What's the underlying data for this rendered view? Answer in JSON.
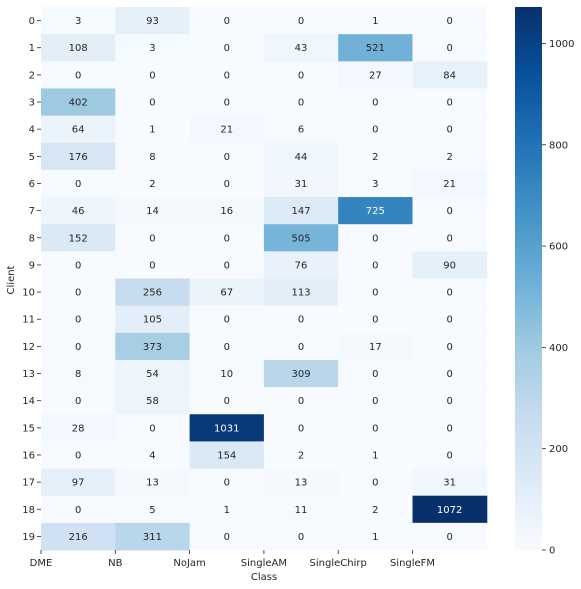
{
  "chart_data": {
    "type": "heatmap",
    "title": "",
    "xlabel": "Class",
    "ylabel": "Client",
    "columns": [
      "DME",
      "NB",
      "NoJam",
      "SingleAM",
      "SingleChirp",
      "SingleFM"
    ],
    "rows": [
      "0",
      "1",
      "2",
      "3",
      "4",
      "5",
      "6",
      "7",
      "8",
      "9",
      "10",
      "11",
      "12",
      "13",
      "14",
      "15",
      "16",
      "17",
      "18",
      "19"
    ],
    "values": [
      [
        3,
        93,
        0,
        0,
        1,
        0
      ],
      [
        108,
        3,
        0,
        43,
        521,
        0
      ],
      [
        0,
        0,
        0,
        0,
        27,
        84
      ],
      [
        402,
        0,
        0,
        0,
        0,
        0
      ],
      [
        64,
        1,
        21,
        6,
        0,
        0
      ],
      [
        176,
        8,
        0,
        44,
        2,
        2
      ],
      [
        0,
        2,
        0,
        31,
        3,
        21
      ],
      [
        46,
        14,
        16,
        147,
        725,
        0
      ],
      [
        152,
        0,
        0,
        505,
        0,
        0
      ],
      [
        0,
        0,
        0,
        76,
        0,
        90
      ],
      [
        0,
        256,
        67,
        113,
        0,
        0
      ],
      [
        0,
        105,
        0,
        0,
        0,
        0
      ],
      [
        0,
        373,
        0,
        0,
        17,
        0
      ],
      [
        8,
        54,
        10,
        309,
        0,
        0
      ],
      [
        0,
        58,
        0,
        0,
        0,
        0
      ],
      [
        28,
        0,
        1031,
        0,
        0,
        0
      ],
      [
        0,
        4,
        154,
        2,
        1,
        0
      ],
      [
        97,
        13,
        0,
        13,
        0,
        31
      ],
      [
        0,
        5,
        1,
        11,
        2,
        1072
      ],
      [
        216,
        311,
        0,
        0,
        1,
        0
      ]
    ],
    "colormap": "Blues",
    "colorbar": {
      "min": 0,
      "max": 1072,
      "ticks": [
        0,
        200,
        400,
        600,
        800,
        1000
      ]
    },
    "annotations": true,
    "x_tick_alignment": "left-edge"
  }
}
